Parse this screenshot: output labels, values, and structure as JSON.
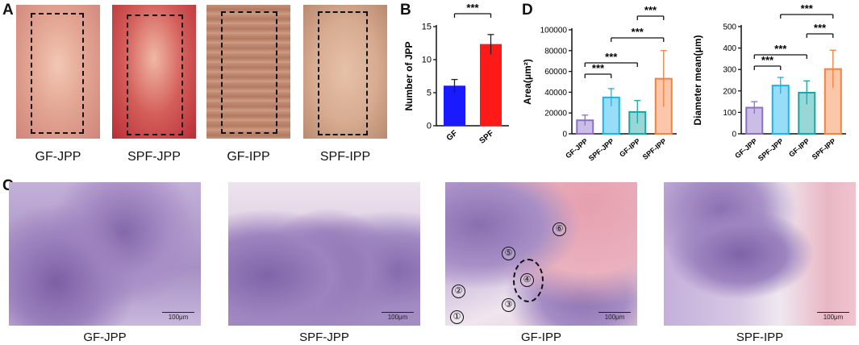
{
  "panels": {
    "a": {
      "letter": "A",
      "captions": [
        "GF-JPP",
        "SPF-JPP",
        "GF-IPP",
        "SPF-IPP"
      ],
      "photo_colors": [
        "#d98f83",
        "#c84a4a",
        "#b9826c",
        "#d0a58b"
      ]
    },
    "b": {
      "letter": "B"
    },
    "c": {
      "letter": "C",
      "captions": [
        "GF-JPP",
        "SPF-JPP",
        "GF-IPP",
        "SPF-IPP"
      ],
      "scale_label": "100μm",
      "markers": [
        "①",
        "②",
        "③",
        "④",
        "⑤",
        "⑥"
      ]
    },
    "d": {
      "letter": "D"
    }
  },
  "chart_data": [
    {
      "id": "B",
      "type": "bar",
      "categories": [
        "GF",
        "SPF"
      ],
      "values": [
        6.0,
        12.3
      ],
      "errors": [
        1.0,
        1.5
      ],
      "colors": [
        "#1a1aff",
        "#ff1a1a"
      ],
      "ylabel": "Number of JPP",
      "ylim": [
        0,
        15
      ],
      "yticks": [
        0,
        5,
        10,
        15
      ],
      "significance": [
        {
          "from": 0,
          "to": 1,
          "label": "***"
        }
      ]
    },
    {
      "id": "D-area",
      "type": "bar",
      "categories": [
        "GF-JPP",
        "SPF-JPP",
        "GF-IPP",
        "SPF-IPP"
      ],
      "values": [
        13000,
        35000,
        21000,
        53000
      ],
      "errors": [
        5000,
        8500,
        11000,
        27000
      ],
      "colors": [
        "#8c6fc8",
        "#1ab3f0",
        "#1aa5a5",
        "#f5813f"
      ],
      "ylabel": "Area(μm²)",
      "ylim": [
        0,
        100000
      ],
      "yticks": [
        0,
        20000,
        40000,
        60000,
        80000,
        100000
      ],
      "significance": [
        {
          "from": 0,
          "to": 1,
          "label": "***"
        },
        {
          "from": 0,
          "to": 2,
          "label": "***"
        },
        {
          "from": 1,
          "to": 3,
          "label": "***"
        },
        {
          "from": 2,
          "to": 3,
          "label": "***"
        }
      ]
    },
    {
      "id": "D-diameter",
      "type": "bar",
      "categories": [
        "GF-JPP",
        "SPF-JPP",
        "GF-IPP",
        "SPF-IPP"
      ],
      "values": [
        122,
        225,
        192,
        302
      ],
      "errors": [
        28,
        38,
        55,
        88
      ],
      "colors": [
        "#8c6fc8",
        "#1ab3f0",
        "#1aa5a5",
        "#f5813f"
      ],
      "ylabel": "Diameter mean(μm)",
      "ylim": [
        0,
        500
      ],
      "yticks": [
        0,
        100,
        200,
        300,
        400,
        500
      ],
      "significance": [
        {
          "from": 0,
          "to": 1,
          "label": "***"
        },
        {
          "from": 0,
          "to": 2,
          "label": "***"
        },
        {
          "from": 2,
          "to": 3,
          "label": "***"
        },
        {
          "from": 1,
          "to": 3,
          "label": "***"
        }
      ]
    }
  ]
}
